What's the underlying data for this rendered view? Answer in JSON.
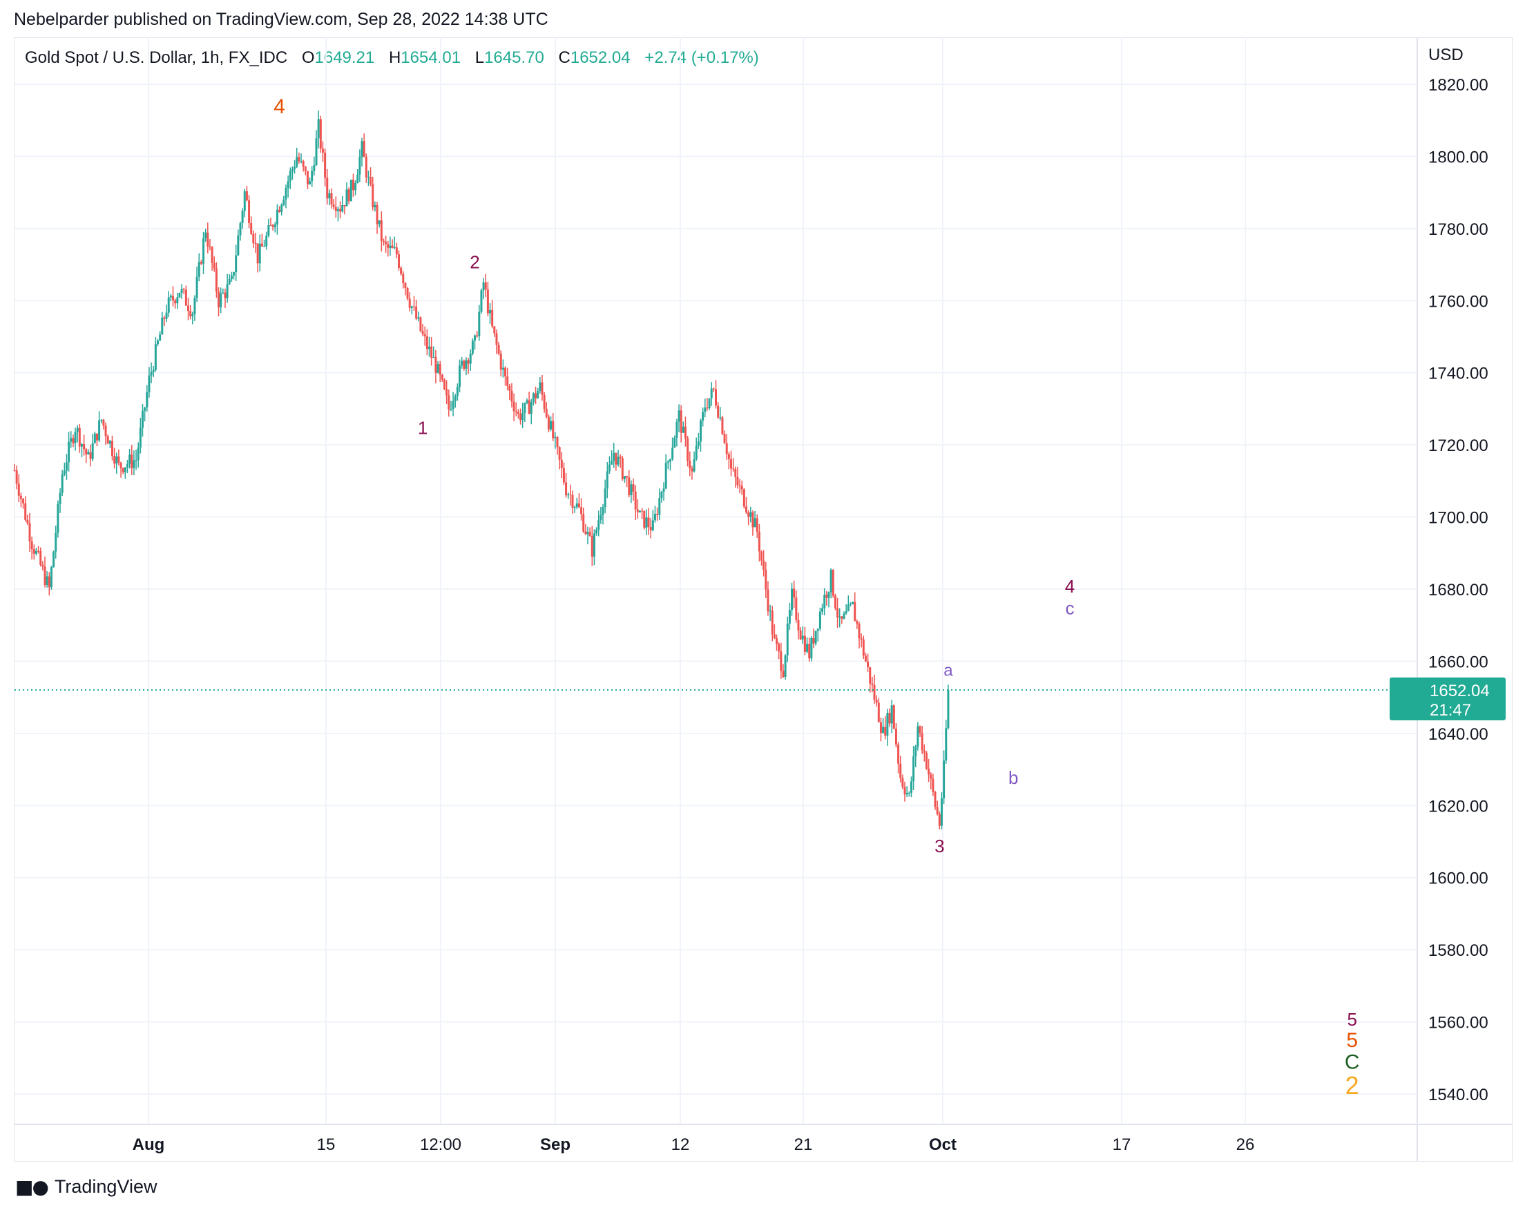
{
  "publisher": "Nebelparder published on TradingView.com, Sep 28, 2022 14:38 UTC",
  "legend": {
    "symbol": "Gold Spot / U.S. Dollar, 1h, FX_IDC",
    "open_label": "O",
    "open": "1649.21",
    "high_label": "H",
    "high": "1654.01",
    "low_label": "L",
    "low": "1645.70",
    "close_label": "C",
    "close": "1652.04",
    "change": "+2.74 (+0.17%)"
  },
  "currency": "USD",
  "footer": {
    "brand": "TradingView",
    "logo_icon": "tradingview-logo-icon"
  },
  "colors": {
    "up": "#26a69a",
    "down": "#ef5350",
    "price_line": "#22ab94",
    "grid": "#f0f3fa"
  },
  "chart_data": {
    "type": "candlestick",
    "ylim": [
      1530,
      1830
    ],
    "y_ticks": [
      "1820.00",
      "1800.00",
      "1780.00",
      "1760.00",
      "1740.00",
      "1720.00",
      "1700.00",
      "1680.00",
      "1660.00",
      "1640.00",
      "1620.00",
      "1600.00",
      "1580.00",
      "1560.00",
      "1540.00"
    ],
    "x_ticks": [
      "Aug",
      "15",
      "12:00",
      "Sep",
      "12",
      "21",
      "Oct",
      "17",
      "26"
    ],
    "x_tick_bold": [
      true,
      false,
      false,
      true,
      false,
      false,
      true,
      false,
      false
    ],
    "price_label": {
      "price": "1652.04",
      "countdown": "21:47"
    },
    "price_path": [
      [
        0,
        1713
      ],
      [
        4,
        1693
      ],
      [
        8,
        1680
      ],
      [
        11,
        1712
      ],
      [
        14,
        1725
      ],
      [
        17,
        1716
      ],
      [
        20,
        1727
      ],
      [
        24,
        1714
      ],
      [
        28,
        1716
      ],
      [
        31,
        1738
      ],
      [
        35,
        1758
      ],
      [
        38,
        1763
      ],
      [
        41,
        1757
      ],
      [
        44,
        1780
      ],
      [
        47,
        1760
      ],
      [
        50,
        1765
      ],
      [
        53,
        1790
      ],
      [
        56,
        1772
      ],
      [
        59,
        1780
      ],
      [
        62,
        1790
      ],
      [
        65,
        1800
      ],
      [
        68,
        1792
      ],
      [
        70,
        1808
      ],
      [
        72,
        1790
      ],
      [
        75,
        1786
      ],
      [
        78,
        1792
      ],
      [
        80,
        1802
      ],
      [
        82,
        1790
      ],
      [
        85,
        1775
      ],
      [
        88,
        1773
      ],
      [
        91,
        1760
      ],
      [
        94,
        1750
      ],
      [
        97,
        1742
      ],
      [
        100,
        1730
      ],
      [
        103,
        1742
      ],
      [
        106,
        1748
      ],
      [
        108,
        1765
      ],
      [
        110,
        1752
      ],
      [
        113,
        1738
      ],
      [
        116,
        1728
      ],
      [
        118,
        1730
      ],
      [
        121,
        1736
      ],
      [
        124,
        1722
      ],
      [
        127,
        1708
      ],
      [
        130,
        1702
      ],
      [
        133,
        1691
      ],
      [
        136,
        1708
      ],
      [
        138,
        1718
      ],
      [
        141,
        1710
      ],
      [
        144,
        1700
      ],
      [
        147,
        1697
      ],
      [
        150,
        1713
      ],
      [
        153,
        1728
      ],
      [
        156,
        1712
      ],
      [
        159,
        1731
      ],
      [
        161,
        1735
      ],
      [
        163,
        1725
      ],
      [
        165,
        1713
      ],
      [
        168,
        1705
      ],
      [
        171,
        1696
      ],
      [
        173,
        1680
      ],
      [
        175,
        1665
      ],
      [
        177,
        1658
      ],
      [
        179,
        1678
      ],
      [
        181,
        1668
      ],
      [
        183,
        1662
      ],
      [
        186,
        1676
      ],
      [
        188,
        1683
      ],
      [
        190,
        1670
      ],
      [
        193,
        1675
      ],
      [
        195,
        1665
      ],
      [
        197,
        1655
      ],
      [
        200,
        1640
      ],
      [
        202,
        1647
      ],
      [
        204,
        1628
      ],
      [
        206,
        1622
      ],
      [
        208,
        1642
      ],
      [
        210,
        1632
      ],
      [
        212,
        1620
      ],
      [
        213,
        1615
      ],
      [
        214,
        1630
      ],
      [
        215,
        1652
      ]
    ],
    "x_range": [
      0,
      323
    ],
    "annotations": [
      {
        "text": "4",
        "t": 61,
        "price": 1812,
        "color": "#e65100",
        "size": 30
      },
      {
        "text": "2",
        "t": 106,
        "price": 1769,
        "color": "#880e4f",
        "size": 26
      },
      {
        "text": "1",
        "t": 94,
        "price": 1723,
        "color": "#880e4f",
        "size": 26
      },
      {
        "text": "3",
        "t": 213,
        "price": 1607,
        "color": "#880e4f",
        "size": 26
      },
      {
        "text": "a",
        "t": 215,
        "price": 1656,
        "color": "#7e57c2",
        "size": 24
      },
      {
        "text": "b",
        "t": 230,
        "price": 1626,
        "color": "#7e57c2",
        "size": 26
      },
      {
        "text": "4",
        "t": 243,
        "price": 1679,
        "color": "#880e4f",
        "size": 26
      },
      {
        "text": "c",
        "t": 243,
        "price": 1673,
        "color": "#7e57c2",
        "size": 26
      },
      {
        "text": "5",
        "t": 308,
        "price": 1559,
        "color": "#880e4f",
        "size": 26
      },
      {
        "text": "5",
        "t": 308,
        "price": 1553,
        "color": "#e65100",
        "size": 30
      },
      {
        "text": "C",
        "t": 308,
        "price": 1547,
        "color": "#1b5e20",
        "size": 30
      },
      {
        "text": "2",
        "t": 308,
        "price": 1540,
        "color": "#f9a825",
        "size": 36
      }
    ]
  }
}
